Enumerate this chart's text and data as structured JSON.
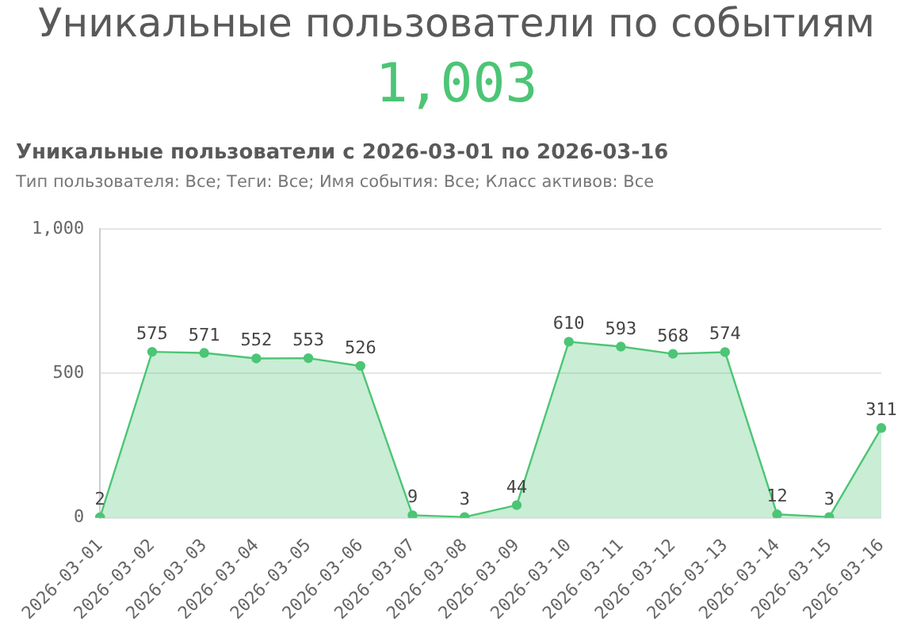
{
  "chart_data": {
    "type": "area",
    "title": "Уникальные пользователи по событиям",
    "subtitle": "Уникальные пользователи с 2026-03-01 по 2026-03-16",
    "annotations": [
      "1,003",
      "Тип пользователя: Все; Теги: Все; Имя события: Все; Класс активов: Все"
    ],
    "categories": [
      "2026-03-01",
      "2026-03-02",
      "2026-03-03",
      "2026-03-04",
      "2026-03-05",
      "2026-03-06",
      "2026-03-07",
      "2026-03-08",
      "2026-03-09",
      "2026-03-10",
      "2026-03-11",
      "2026-03-12",
      "2026-03-13",
      "2026-03-14",
      "2026-03-15",
      "2026-03-16"
    ],
    "values": [
      2,
      575,
      571,
      552,
      553,
      526,
      9,
      3,
      44,
      610,
      593,
      568,
      574,
      12,
      3,
      311
    ],
    "color": "#4cc575",
    "ylim": [
      0,
      1000
    ],
    "yticks": [
      0,
      500,
      {
        "value": 1000,
        "label": "1,000"
      }
    ],
    "grid": "y",
    "marker": "circle",
    "data_labels": true
  }
}
